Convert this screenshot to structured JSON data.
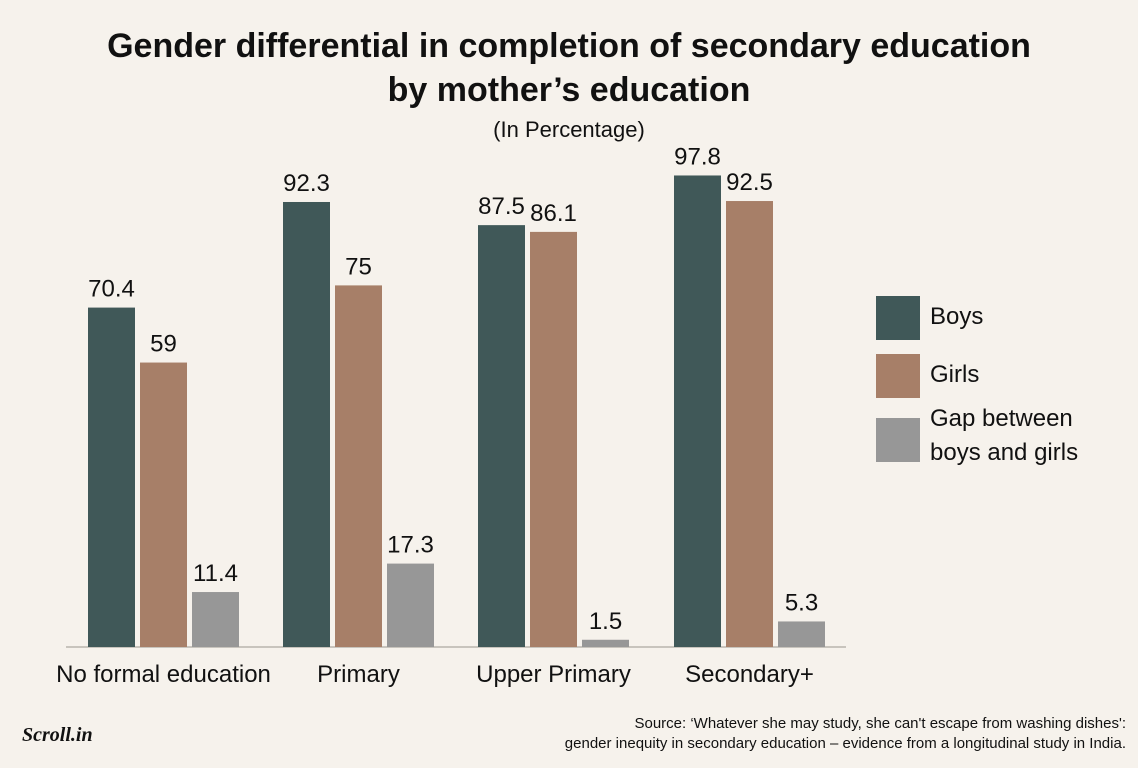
{
  "chart_data": {
    "type": "bar",
    "title": "Gender differential in completion of secondary education by mother’s education",
    "subtitle": "(In Percentage)",
    "categories": [
      "No formal education",
      "Primary",
      "Upper Primary",
      "Secondary+"
    ],
    "series": [
      {
        "name": "Boys",
        "values": [
          70.4,
          92.3,
          87.5,
          97.8
        ],
        "color": "#405858",
        "labels": [
          "70.4",
          "92.3",
          "87.5",
          "97.8"
        ]
      },
      {
        "name": "Girls",
        "values": [
          59,
          75,
          86.1,
          92.5
        ],
        "color": "#a77f68",
        "labels": [
          "59",
          "75",
          "86.1",
          "92.5"
        ]
      },
      {
        "name": "Gap between boys and girls",
        "values": [
          11.4,
          17.3,
          1.5,
          5.3
        ],
        "color": "#979797",
        "labels": [
          "11.4",
          "17.3",
          "1.5",
          "5.3"
        ]
      }
    ],
    "ylim": [
      0,
      100
    ],
    "grid": false,
    "legend_position": "right"
  },
  "title_lines": [
    "Gender differential in completion of secondary education",
    "by mother’s education"
  ],
  "legend": {
    "boys": "Boys",
    "girls": "Girls",
    "gap_line1": "Gap between",
    "gap_line2": "boys and girls"
  },
  "footer": {
    "logo_text": "Scroll.in",
    "source_line1": "Source: ‘Whatever she may study, she can't escape from washing dishes':",
    "source_line2": "gender inequity in secondary education – evidence from a longitudinal study in India."
  }
}
